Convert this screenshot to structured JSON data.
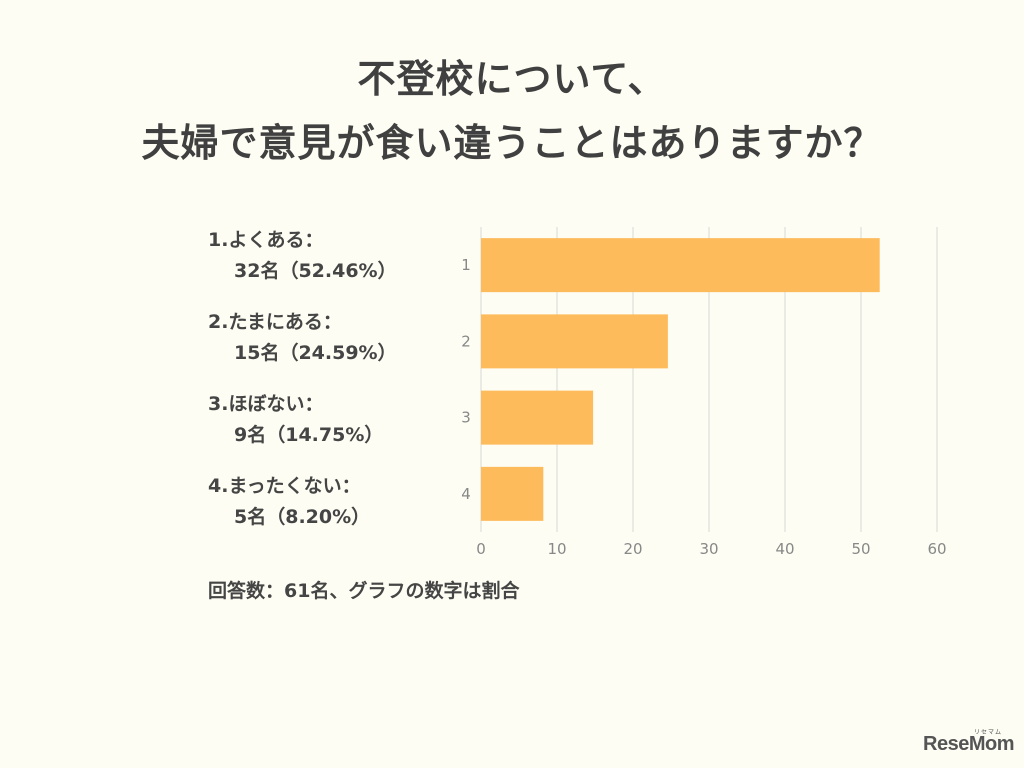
{
  "title": {
    "line1": "不登校について、",
    "line2": "夫婦で意見が食い違うことはありますか？"
  },
  "labels": [
    {
      "head": "1.よくある：",
      "detail": "32名（52.46%）"
    },
    {
      "head": "2.たまにある：",
      "detail": "15名（24.59%）"
    },
    {
      "head": "3.ほぼない：",
      "detail": "9名（14.75%）"
    },
    {
      "head": "4.まったくない：",
      "detail": "5名（8.20%）"
    }
  ],
  "footnote": "回答数：61名、グラフの数字は割合",
  "logo": {
    "text": "ReseMom",
    "ruby": "リセマム"
  },
  "chart_data": {
    "type": "bar",
    "orientation": "horizontal",
    "categories": [
      "1",
      "2",
      "3",
      "4"
    ],
    "values": [
      52.46,
      24.59,
      14.75,
      8.2
    ],
    "xticks": [
      0,
      10,
      20,
      30,
      40,
      50,
      60
    ],
    "xlim": [
      0,
      60
    ],
    "grid": true,
    "bar_color": "#fdbb5b",
    "grid_color": "#d9d9d9",
    "tick_color": "#888888"
  }
}
